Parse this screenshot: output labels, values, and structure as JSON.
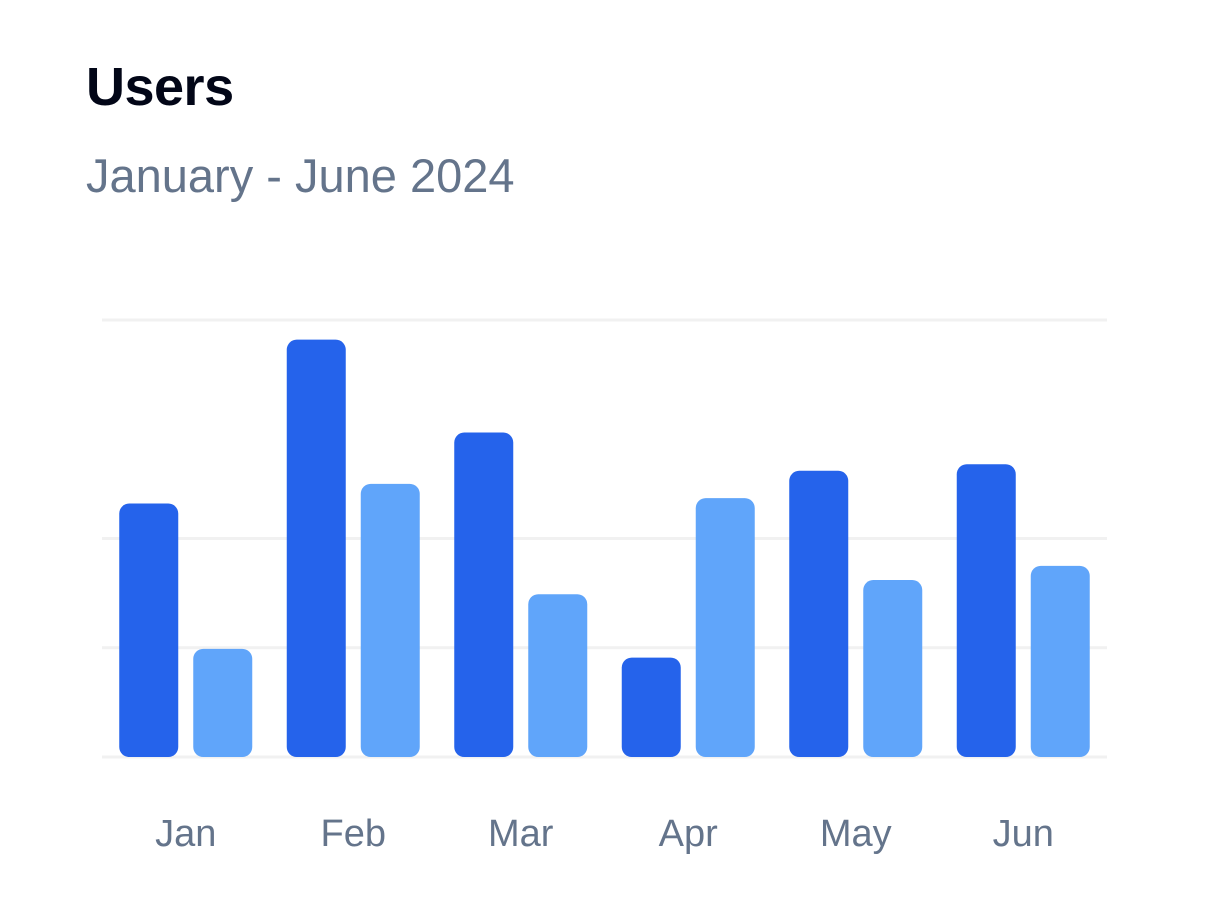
{
  "card": {
    "title": "Users",
    "subtitle": "January - June 2024"
  },
  "chart_data": {
    "type": "bar",
    "title": "Users",
    "subtitle": "January - June 2024",
    "categories": [
      "Jan",
      "Feb",
      "Mar",
      "Apr",
      "May",
      "Jun"
    ],
    "series": [
      {
        "values": [
          232,
          382,
          297,
          91,
          262,
          268
        ],
        "color": "#2563eb"
      },
      {
        "values": [
          99,
          250,
          149,
          237,
          162,
          175
        ],
        "color": "#60a5fa"
      }
    ],
    "ylim": [
      0,
      400
    ],
    "gridlines": [
      0,
      100,
      200,
      400
    ],
    "grid": true,
    "legend": false,
    "xlabel": "",
    "ylabel": ""
  }
}
